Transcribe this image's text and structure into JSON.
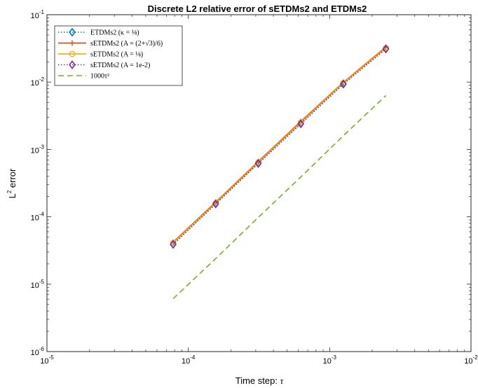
{
  "chart_data": {
    "type": "line",
    "title": "Discrete L2 relative error of sETDMs2 and ETDMs2",
    "xlabel_text": "Time step: ",
    "xlabel_symbol": "τ",
    "ylabel_base": "L",
    "ylabel_exp": "2",
    "ylabel_rest": " error",
    "xscale": "log",
    "yscale": "log",
    "xlim": [
      1e-05,
      0.01
    ],
    "ylim": [
      1e-06,
      0.1
    ],
    "grid": false,
    "legend_position": "top-left",
    "x_ticks": [
      {
        "value": 1e-05,
        "base": "10",
        "exp": "-5"
      },
      {
        "value": 0.0001,
        "base": "10",
        "exp": "-4"
      },
      {
        "value": 0.001,
        "base": "10",
        "exp": "-3"
      },
      {
        "value": 0.01,
        "base": "10",
        "exp": "-2"
      }
    ],
    "y_ticks": [
      {
        "value": 1e-06,
        "base": "10",
        "exp": "-6"
      },
      {
        "value": 1e-05,
        "base": "10",
        "exp": "-5"
      },
      {
        "value": 0.0001,
        "base": "10",
        "exp": "-4"
      },
      {
        "value": 0.001,
        "base": "10",
        "exp": "-3"
      },
      {
        "value": 0.01,
        "base": "10",
        "exp": "-2"
      },
      {
        "value": 0.1,
        "base": "10",
        "exp": "-1"
      }
    ],
    "x": [
      7.8125e-05,
      0.00015625,
      0.0003125,
      0.000625,
      0.00125,
      0.0025
    ],
    "series": [
      {
        "name": "ETDMs2 (κ = 1/8)",
        "legend_label": "ETDMs2 (κ = ⅛)",
        "color": "#0072BD",
        "line_style": "dotted",
        "marker": "diamond",
        "values": [
          3.9e-05,
          0.000155,
          0.00062,
          0.0024,
          0.0093,
          0.031
        ]
      },
      {
        "name": "sETDMs2 (A = (2+√3)/6)",
        "legend_label": "sETDMs2 (A = (2+√3)/6)",
        "color": "#D95319",
        "line_style": "solid",
        "marker": "plus",
        "values": [
          4.2e-05,
          0.000165,
          0.00066,
          0.0026,
          0.0099,
          0.033
        ]
      },
      {
        "name": "sETDMs2 (A = 1/8)",
        "legend_label": "sETDMs2 (A = ⅛)",
        "color": "#EDB120",
        "line_style": "solid",
        "marker": "circle",
        "values": [
          4.1e-05,
          0.00016,
          0.00064,
          0.0025,
          0.0097,
          0.032
        ]
      },
      {
        "name": "sETDMs2 (A = 1e-2)",
        "legend_label": "sETDMs2 (A = 1e-2)",
        "color": "#7E2F8E",
        "line_style": "dotted",
        "marker": "diamond",
        "values": [
          3.9e-05,
          0.000156,
          0.00062,
          0.0024,
          0.0094,
          0.031
        ]
      },
      {
        "name": "1000τ²",
        "legend_label": "1000τ²",
        "color": "#77AC30",
        "line_style": "dashed",
        "marker": "none",
        "values": [
          6.1e-06,
          2.4e-05,
          9.8e-05,
          0.00039,
          0.0016,
          0.0063
        ]
      }
    ]
  }
}
